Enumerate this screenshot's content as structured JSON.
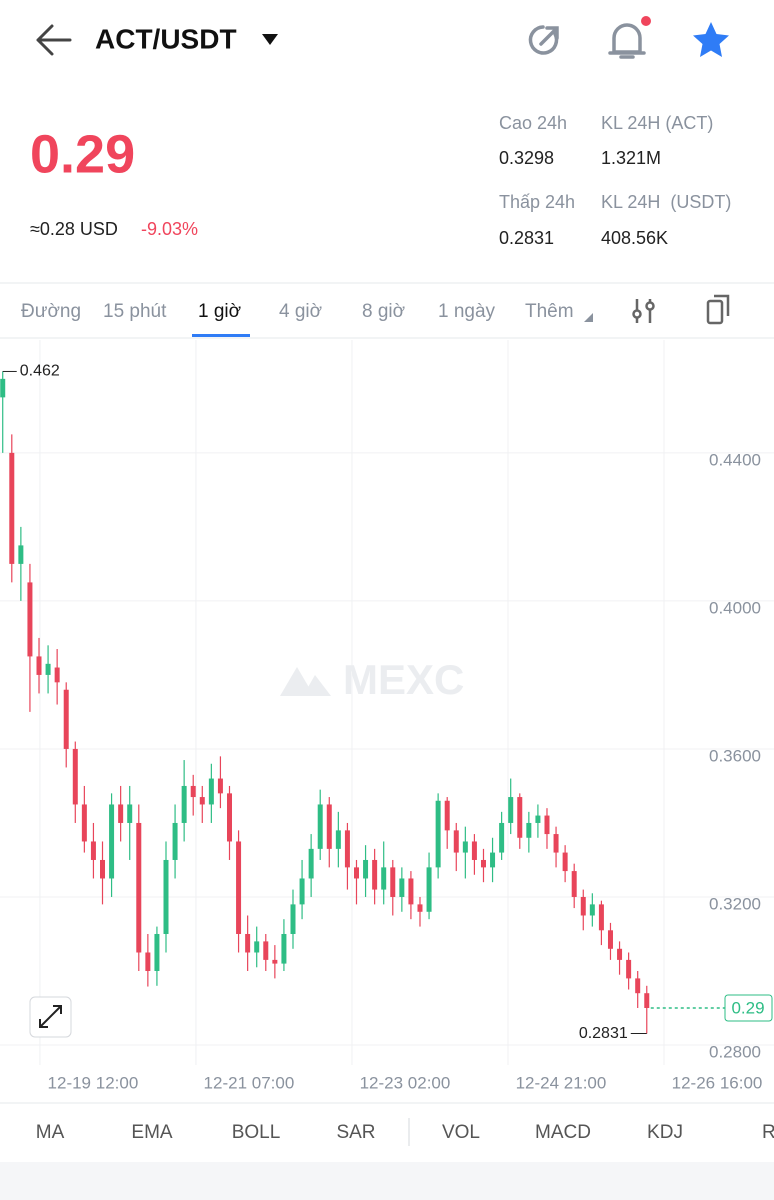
{
  "header": {
    "pair": "ACT/USDT"
  },
  "ticker": {
    "price": "0.29",
    "usd_approx": "≈0.28 USD",
    "change": "-9.03%",
    "stats": [
      {
        "label": "Cao 24h",
        "value": "0.3298"
      },
      {
        "label": "KL 24H (ACT)",
        "value": "1.321M"
      },
      {
        "label": "Thấp 24h",
        "value": "0.2831"
      },
      {
        "label": "KL 24H  (USDT)",
        "value": "408.56K"
      }
    ]
  },
  "tabs": [
    "Đường",
    "15 phút",
    "1 giờ",
    "4 giờ",
    "8 giờ",
    "1 ngày",
    "Thêm"
  ],
  "active_tab": "1 giờ",
  "watermark": "MEXC",
  "chart_data": {
    "type": "candlestick",
    "up_color": "#2ebd85",
    "down_color": "#e8455a",
    "grid": true,
    "open": [
      0.455,
      0.44,
      0.41,
      0.405,
      0.385,
      0.38,
      0.382,
      0.376,
      0.36,
      0.345,
      0.335,
      0.33,
      0.325,
      0.345,
      0.34,
      0.34,
      0.305,
      0.3,
      0.31,
      0.33,
      0.34,
      0.35,
      0.347,
      0.345,
      0.352,
      0.348,
      0.335,
      0.31,
      0.305,
      0.308,
      0.303,
      0.302,
      0.31,
      0.318,
      0.325,
      0.333,
      0.345,
      0.333,
      0.338,
      0.328,
      0.325,
      0.33,
      0.322,
      0.328,
      0.32,
      0.325,
      0.318,
      0.316,
      0.328,
      0.346,
      0.338,
      0.332,
      0.335,
      0.33,
      0.328,
      0.332,
      0.34,
      0.347,
      0.336,
      0.34,
      0.342,
      0.337,
      0.332,
      0.327,
      0.32,
      0.315,
      0.318,
      0.311,
      0.306,
      0.303,
      0.298,
      0.294
    ],
    "high": [
      0.462,
      0.445,
      0.42,
      0.41,
      0.39,
      0.388,
      0.387,
      0.378,
      0.362,
      0.35,
      0.34,
      0.335,
      0.348,
      0.35,
      0.35,
      0.345,
      0.31,
      0.312,
      0.335,
      0.345,
      0.357,
      0.353,
      0.35,
      0.356,
      0.358,
      0.35,
      0.338,
      0.315,
      0.312,
      0.31,
      0.307,
      0.314,
      0.322,
      0.33,
      0.337,
      0.349,
      0.347,
      0.343,
      0.34,
      0.33,
      0.334,
      0.333,
      0.335,
      0.33,
      0.328,
      0.327,
      0.32,
      0.332,
      0.348,
      0.347,
      0.34,
      0.339,
      0.337,
      0.333,
      0.336,
      0.343,
      0.352,
      0.348,
      0.343,
      0.345,
      0.344,
      0.339,
      0.334,
      0.329,
      0.322,
      0.321,
      0.319,
      0.313,
      0.308,
      0.305,
      0.3,
      0.296
    ],
    "low": [
      0.44,
      0.405,
      0.4,
      0.37,
      0.375,
      0.375,
      0.372,
      0.355,
      0.34,
      0.332,
      0.325,
      0.318,
      0.32,
      0.335,
      0.33,
      0.3,
      0.2958,
      0.296,
      0.305,
      0.325,
      0.335,
      0.342,
      0.34,
      0.34,
      0.344,
      0.33,
      0.305,
      0.3,
      0.301,
      0.3,
      0.298,
      0.3,
      0.306,
      0.314,
      0.32,
      0.33,
      0.328,
      0.328,
      0.322,
      0.318,
      0.32,
      0.318,
      0.318,
      0.315,
      0.316,
      0.314,
      0.312,
      0.314,
      0.325,
      0.333,
      0.327,
      0.325,
      0.326,
      0.324,
      0.324,
      0.33,
      0.337,
      0.333,
      0.332,
      0.336,
      0.333,
      0.328,
      0.324,
      0.317,
      0.311,
      0.312,
      0.307,
      0.303,
      0.299,
      0.295,
      0.29,
      0.2831
    ],
    "close": [
      0.46,
      0.41,
      0.415,
      0.385,
      0.38,
      0.383,
      0.378,
      0.36,
      0.345,
      0.335,
      0.33,
      0.325,
      0.345,
      0.34,
      0.345,
      0.305,
      0.3,
      0.31,
      0.33,
      0.34,
      0.35,
      0.347,
      0.345,
      0.352,
      0.348,
      0.335,
      0.31,
      0.305,
      0.308,
      0.303,
      0.302,
      0.31,
      0.318,
      0.325,
      0.333,
      0.345,
      0.333,
      0.338,
      0.328,
      0.325,
      0.33,
      0.322,
      0.328,
      0.32,
      0.325,
      0.318,
      0.316,
      0.328,
      0.346,
      0.338,
      0.332,
      0.335,
      0.33,
      0.328,
      0.332,
      0.34,
      0.347,
      0.336,
      0.34,
      0.342,
      0.337,
      0.332,
      0.327,
      0.32,
      0.315,
      0.318,
      0.311,
      0.306,
      0.303,
      0.298,
      0.294,
      0.29
    ],
    "xlim": [
      -0.3,
      72.9
    ],
    "xticks": [
      {
        "value": 4.1,
        "label": "12-19 12:00"
      },
      {
        "value": 21.3,
        "label": "12-21 07:00"
      },
      {
        "value": 38.5,
        "label": "12-23 02:00"
      },
      {
        "value": 55.7,
        "label": "12-24 21:00"
      },
      {
        "value": 72.9,
        "label": "12-26 16:00"
      }
    ],
    "ylim": [
      0.2746,
      0.4705
    ],
    "yticks": [
      {
        "value": 0.28,
        "label": "0.2800"
      },
      {
        "value": 0.32,
        "label": "0.3200"
      },
      {
        "value": 0.36,
        "label": "0.3600"
      },
      {
        "value": 0.4,
        "label": "0.4000"
      },
      {
        "value": 0.44,
        "label": "0.4400"
      }
    ],
    "high_marker": 0.462,
    "low_marker": 0.2831,
    "last_price": 0.29
  },
  "indicators": [
    "MA",
    "EMA",
    "BOLL",
    "SAR",
    "VOL",
    "MACD",
    "KDJ",
    "RS"
  ]
}
